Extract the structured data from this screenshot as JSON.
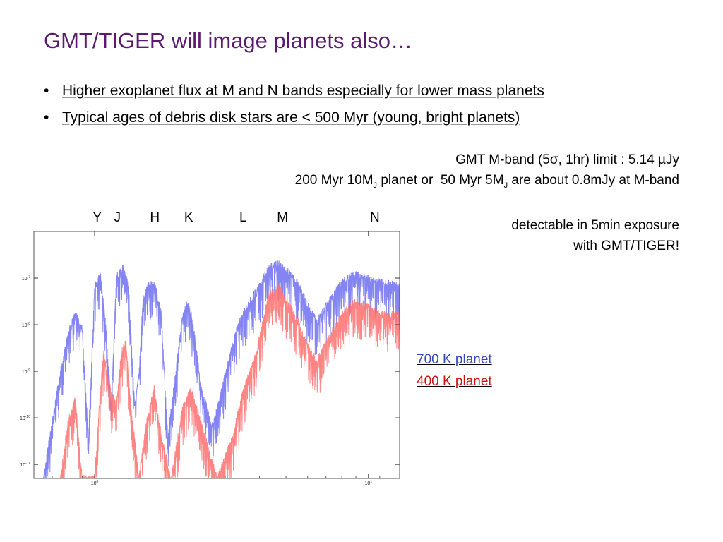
{
  "slide": {
    "title": "GMT/TIGER will image planets also…",
    "bullets": [
      "Higher exoplanet flux at M and N bands especially for lower mass planets",
      "Typical ages of debris disk stars are < 500 Myr (young, bright planets)"
    ],
    "note_limit": "GMT M-band (5σ, 1hr) limit : 5.14 µJy",
    "note_planet_a": "200 Myr 10M",
    "note_planet_sub_a": "J",
    "note_planet_b": " planet or  50 Myr 5M",
    "note_planet_sub_b": "J",
    "note_planet_c": " are about 0.8mJy at M-band",
    "note_detect_1": "detectable in 5min exposure",
    "note_detect_2": "with GMT/TIGER!"
  },
  "chart_data": {
    "type": "line",
    "title": "",
    "xlabel": "",
    "ylabel": "",
    "xscale": "log",
    "yscale": "log",
    "xlim": [
      0.6,
      13
    ],
    "ylim": [
      5e-12,
      1e-06
    ],
    "grid": false,
    "x_ticks": [
      {
        "value": 1,
        "base": "10",
        "exp": "0"
      },
      {
        "value": 10,
        "base": "10",
        "exp": "1"
      }
    ],
    "y_ticks": [
      {
        "value": 1e-07,
        "base": "10",
        "exp": "-7"
      },
      {
        "value": 1e-08,
        "base": "10",
        "exp": "-8"
      },
      {
        "value": 1e-09,
        "base": "10",
        "exp": "-9"
      },
      {
        "value": 1e-10,
        "base": "10",
        "exp": "-10"
      },
      {
        "value": 1e-11,
        "base": "10",
        "exp": "-11"
      }
    ],
    "band_labels": [
      {
        "label": "Y",
        "x": 1.02
      },
      {
        "label": "J",
        "x": 1.22
      },
      {
        "label": "H",
        "x": 1.65
      },
      {
        "label": "K",
        "x": 2.2
      },
      {
        "label": "L",
        "x": 3.5
      },
      {
        "label": "M",
        "x": 4.8
      },
      {
        "label": "N",
        "x": 10.5
      }
    ],
    "series": [
      {
        "name": "700 K planet",
        "color": "#6f6ff0",
        "points": [
          [
            0.65,
            6e-12
          ],
          [
            0.7,
            1e-10
          ],
          [
            0.75,
            1.2e-09
          ],
          [
            0.8,
            8e-09
          ],
          [
            0.85,
            2e-08
          ],
          [
            0.9,
            1e-08
          ],
          [
            0.95,
            5e-11
          ],
          [
            1.0,
            8e-08
          ],
          [
            1.05,
            1.5e-07
          ],
          [
            1.1,
            1e-08
          ],
          [
            1.15,
            2e-10
          ],
          [
            1.2,
            1.3e-07
          ],
          [
            1.27,
            2e-07
          ],
          [
            1.33,
            8e-08
          ],
          [
            1.4,
            2e-10
          ],
          [
            1.45,
            1e-09
          ],
          [
            1.5,
            4e-08
          ],
          [
            1.58,
            9e-08
          ],
          [
            1.65,
            1e-07
          ],
          [
            1.75,
            2e-08
          ],
          [
            1.85,
            5e-11
          ],
          [
            2.0,
            2e-09
          ],
          [
            2.1,
            2e-08
          ],
          [
            2.2,
            4e-08
          ],
          [
            2.3,
            1e-08
          ],
          [
            2.45,
            5e-10
          ],
          [
            2.7,
            8e-11
          ],
          [
            3.0,
            1e-09
          ],
          [
            3.3,
            1e-08
          ],
          [
            3.6,
            3e-08
          ],
          [
            3.8,
            5e-08
          ],
          [
            4.0,
            8e-08
          ],
          [
            4.3,
            2e-07
          ],
          [
            4.7,
            2.5e-07
          ],
          [
            5.0,
            1.8e-07
          ],
          [
            5.5,
            1e-07
          ],
          [
            6.0,
            3e-08
          ],
          [
            6.5,
            1.5e-08
          ],
          [
            7.0,
            3e-08
          ],
          [
            8.0,
            1e-07
          ],
          [
            9.0,
            1.5e-07
          ],
          [
            10.0,
            1.2e-07
          ],
          [
            11.0,
            1e-07
          ],
          [
            12.0,
            9e-08
          ],
          [
            13.0,
            8e-08
          ]
        ]
      },
      {
        "name": "400 K planet",
        "color": "#ff7070",
        "points": [
          [
            0.75,
            6e-12
          ],
          [
            0.8,
            1e-10
          ],
          [
            0.85,
            3e-10
          ],
          [
            0.9,
            6e-12
          ],
          [
            1.0,
            6e-12
          ],
          [
            1.05,
            5e-10
          ],
          [
            1.08,
            3e-09
          ],
          [
            1.12,
            8e-10
          ],
          [
            1.2,
            2e-10
          ],
          [
            1.25,
            3e-09
          ],
          [
            1.3,
            5e-09
          ],
          [
            1.35,
            3e-10
          ],
          [
            1.45,
            6e-12
          ],
          [
            1.55,
            1e-10
          ],
          [
            1.65,
            5e-10
          ],
          [
            1.75,
            5e-11
          ],
          [
            1.9,
            6e-12
          ],
          [
            2.1,
            2e-10
          ],
          [
            2.25,
            5e-10
          ],
          [
            2.5,
            6e-11
          ],
          [
            2.8,
            6e-12
          ],
          [
            3.2,
            5e-11
          ],
          [
            3.5,
            5e-10
          ],
          [
            3.9,
            3e-09
          ],
          [
            4.3,
            5e-08
          ],
          [
            4.7,
            8e-08
          ],
          [
            5.0,
            4e-08
          ],
          [
            5.5,
            1.5e-08
          ],
          [
            6.0,
            4e-09
          ],
          [
            6.5,
            2e-09
          ],
          [
            7.0,
            5e-09
          ],
          [
            8.0,
            2e-08
          ],
          [
            9.0,
            4e-08
          ],
          [
            10.0,
            3e-08
          ],
          [
            11.0,
            2e-08
          ],
          [
            12.0,
            2e-08
          ],
          [
            13.0,
            2e-08
          ]
        ]
      }
    ]
  }
}
